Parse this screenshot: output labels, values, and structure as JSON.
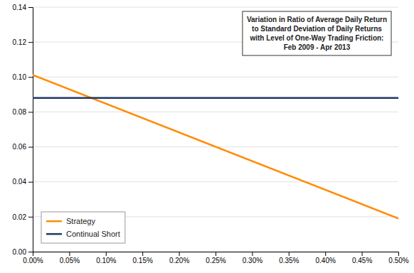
{
  "chart_data": {
    "type": "line",
    "title": "Variation in Ratio of Average Daily Return\nto Standard Deviation of Daily Returns\nwith Level of One-Way Trading Friction:\nFeb 2009 - Apr 2013",
    "x": [
      0.0,
      0.005
    ],
    "series": [
      {
        "name": "Strategy",
        "color": "#FF8C00",
        "values": [
          0.1012,
          0.019
        ]
      },
      {
        "name": "Continual Short",
        "color": "#1F3864",
        "values": [
          0.088,
          0.088
        ]
      }
    ],
    "xlim": [
      0.0,
      0.005
    ],
    "ylim": [
      0.0,
      0.14
    ],
    "xticks": [
      {
        "value": 0.0,
        "label": "0.00%"
      },
      {
        "value": 0.0005,
        "label": "0.05%"
      },
      {
        "value": 0.001,
        "label": "0.10%"
      },
      {
        "value": 0.0015,
        "label": "0.15%"
      },
      {
        "value": 0.002,
        "label": "0.20%"
      },
      {
        "value": 0.0025,
        "label": "0.25%"
      },
      {
        "value": 0.003,
        "label": "0.30%"
      },
      {
        "value": 0.0035,
        "label": "0.35%"
      },
      {
        "value": 0.004,
        "label": "0.40%"
      },
      {
        "value": 0.0045,
        "label": "0.45%"
      },
      {
        "value": 0.005,
        "label": "0.50%"
      }
    ],
    "yticks": [
      {
        "value": 0.0,
        "label": "0.00"
      },
      {
        "value": 0.02,
        "label": "0.02"
      },
      {
        "value": 0.04,
        "label": "0.04"
      },
      {
        "value": 0.06,
        "label": "0.06"
      },
      {
        "value": 0.08,
        "label": "0.08"
      },
      {
        "value": 0.1,
        "label": "0.10"
      },
      {
        "value": 0.12,
        "label": "0.12"
      },
      {
        "value": 0.14,
        "label": "0.14"
      }
    ],
    "grid": "y",
    "legend": "lower left"
  }
}
